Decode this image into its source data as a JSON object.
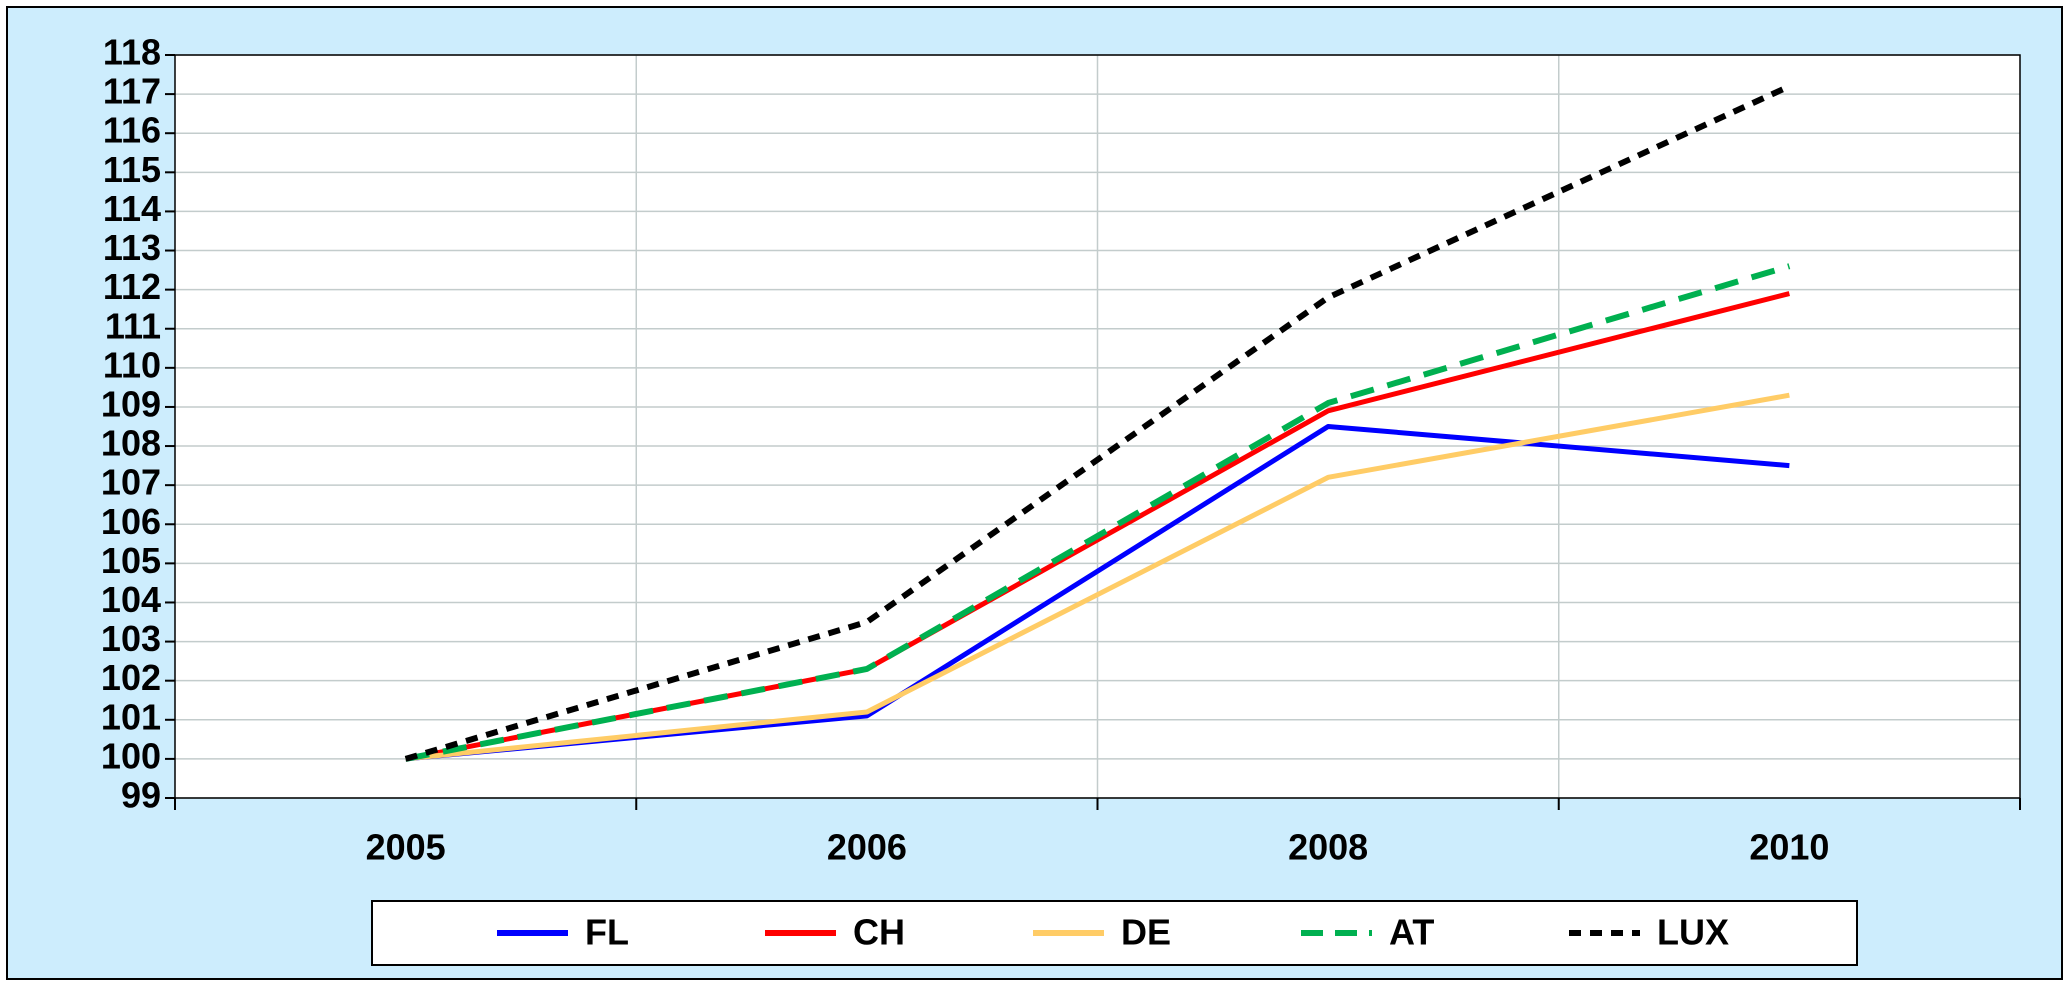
{
  "chart_data": {
    "type": "line",
    "categories": [
      "2005",
      "2006",
      "2008",
      "2010"
    ],
    "series": [
      {
        "name": "FL",
        "color": "#0000ff",
        "dashed": false,
        "values": [
          100,
          101.1,
          108.5,
          107.5
        ]
      },
      {
        "name": "CH",
        "color": "#ff0000",
        "dashed": false,
        "values": [
          100,
          102.3,
          108.9,
          111.9
        ]
      },
      {
        "name": "DE",
        "color": "#ffcc66",
        "dashed": false,
        "values": [
          100,
          101.2,
          107.2,
          109.3
        ]
      },
      {
        "name": "AT",
        "color": "#00b050",
        "dashed": true,
        "values": [
          100,
          102.3,
          109.1,
          112.6
        ]
      },
      {
        "name": "LUX",
        "color": "#000000",
        "dashed": true,
        "values": [
          100,
          103.5,
          111.8,
          117.2
        ]
      }
    ],
    "ylim": [
      99,
      118
    ],
    "yticks": [
      99,
      100,
      101,
      102,
      103,
      104,
      105,
      106,
      107,
      108,
      109,
      110,
      111,
      112,
      113,
      114,
      115,
      116,
      117,
      118
    ],
    "grid": true,
    "legend": "bottom"
  }
}
